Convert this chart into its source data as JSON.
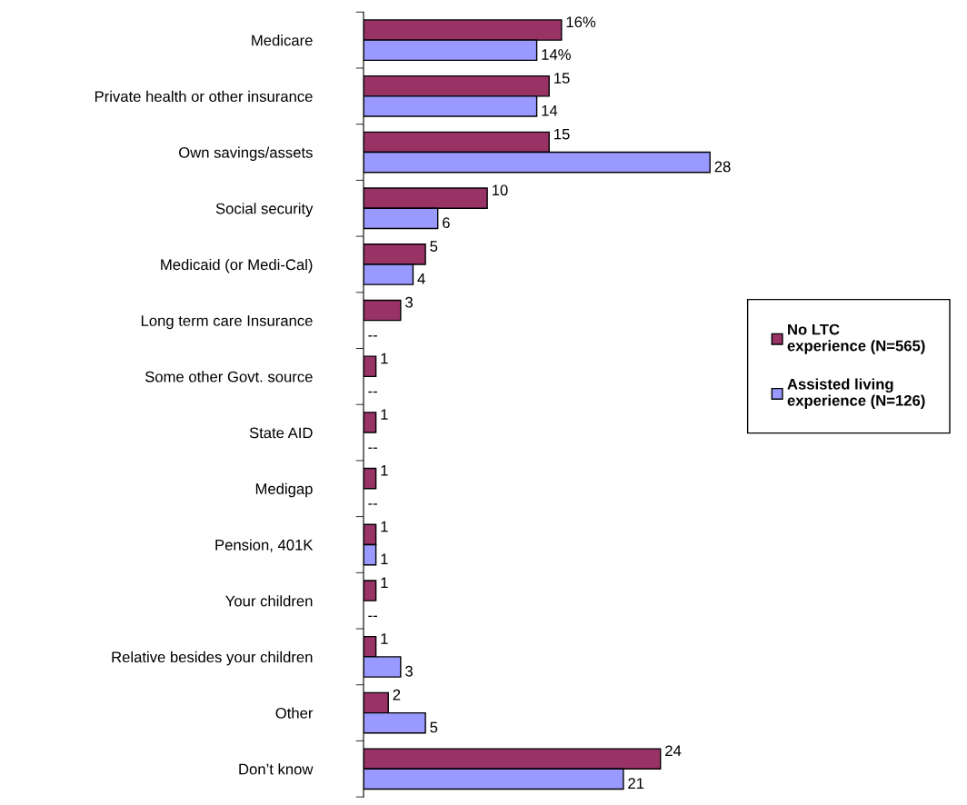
{
  "chart_data": {
    "type": "bar",
    "orientation": "horizontal",
    "categories": [
      "Medicare",
      "Private health or other insurance",
      "Own savings/assets",
      "Social security",
      "Medicaid (or Medi-Cal)",
      "Long term care Insurance",
      "Some other Govt. source",
      "State AID",
      "Medigap",
      "Pension, 401K",
      "Your children",
      "Relative besides your children",
      "Other",
      "Don’t know"
    ],
    "series": [
      {
        "name": "No LTC experience (N=565)",
        "color": "#993366",
        "values": [
          16,
          15,
          15,
          10,
          5,
          3,
          1,
          1,
          1,
          1,
          1,
          1,
          2,
          24
        ],
        "value_labels": [
          "16%",
          "15",
          "15",
          "10",
          "5",
          "3",
          "1",
          "1",
          "1",
          "1",
          "1",
          "1",
          "2",
          "24"
        ]
      },
      {
        "name": "Assisted living experience (N=126)",
        "color": "#9999ff",
        "values": [
          14,
          14,
          28,
          6,
          4,
          null,
          null,
          null,
          null,
          1,
          null,
          3,
          5,
          21
        ],
        "value_labels": [
          "14%",
          "14",
          "28",
          "6",
          "4",
          "--",
          "--",
          "--",
          "--",
          "1",
          "--",
          "3",
          "5",
          "21"
        ]
      }
    ],
    "legend": "right",
    "grid": false
  }
}
